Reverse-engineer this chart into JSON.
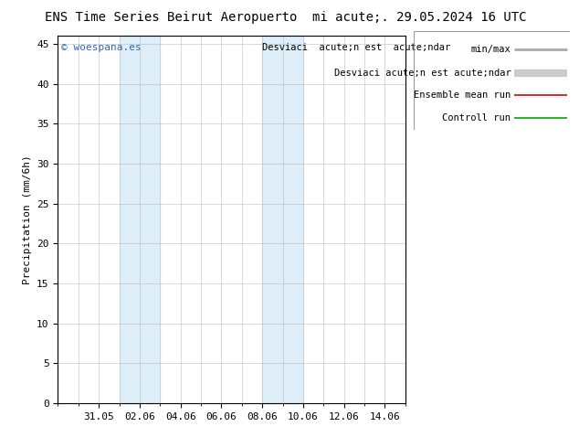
{
  "title_left": "ENS Time Series Beirut Aeropuerto",
  "title_right": "mi acute;. 29.05.2024 16 UTC",
  "ylabel": "Precipitation (mm/6h)",
  "ymin": 0,
  "ymax": 46,
  "yticks": [
    0,
    5,
    10,
    15,
    20,
    25,
    30,
    35,
    40,
    45
  ],
  "xtick_labels": [
    "31.05",
    "02.06",
    "04.06",
    "06.06",
    "08.06",
    "10.06",
    "12.06",
    "14.06"
  ],
  "xtick_days_from_start": [
    2,
    4,
    6,
    8,
    10,
    12,
    14,
    16
  ],
  "total_days": 17,
  "shade1_start": 3,
  "shade1_end": 5,
  "shade2_start": 10,
  "shade2_end": 12,
  "shade_color": "#ddeef9",
  "watermark": "© woespana.es",
  "watermark_color": "#3366bb",
  "legend_label1": "min/max",
  "legend_label2": "Desviaci acute;n est acute;ndar",
  "legend_label3": "Ensemble mean run",
  "legend_label4": "Controll run",
  "legend_color1": "#aaaaaa",
  "legend_color2": "#cccccc",
  "legend_color3": "#dd0000",
  "legend_color4": "#00aa00",
  "bg_color": "#ffffff",
  "grid_color": "#bbbbbb",
  "title_fontsize": 10,
  "label_fontsize": 8,
  "tick_fontsize": 8,
  "legend_fontsize": 7.5
}
